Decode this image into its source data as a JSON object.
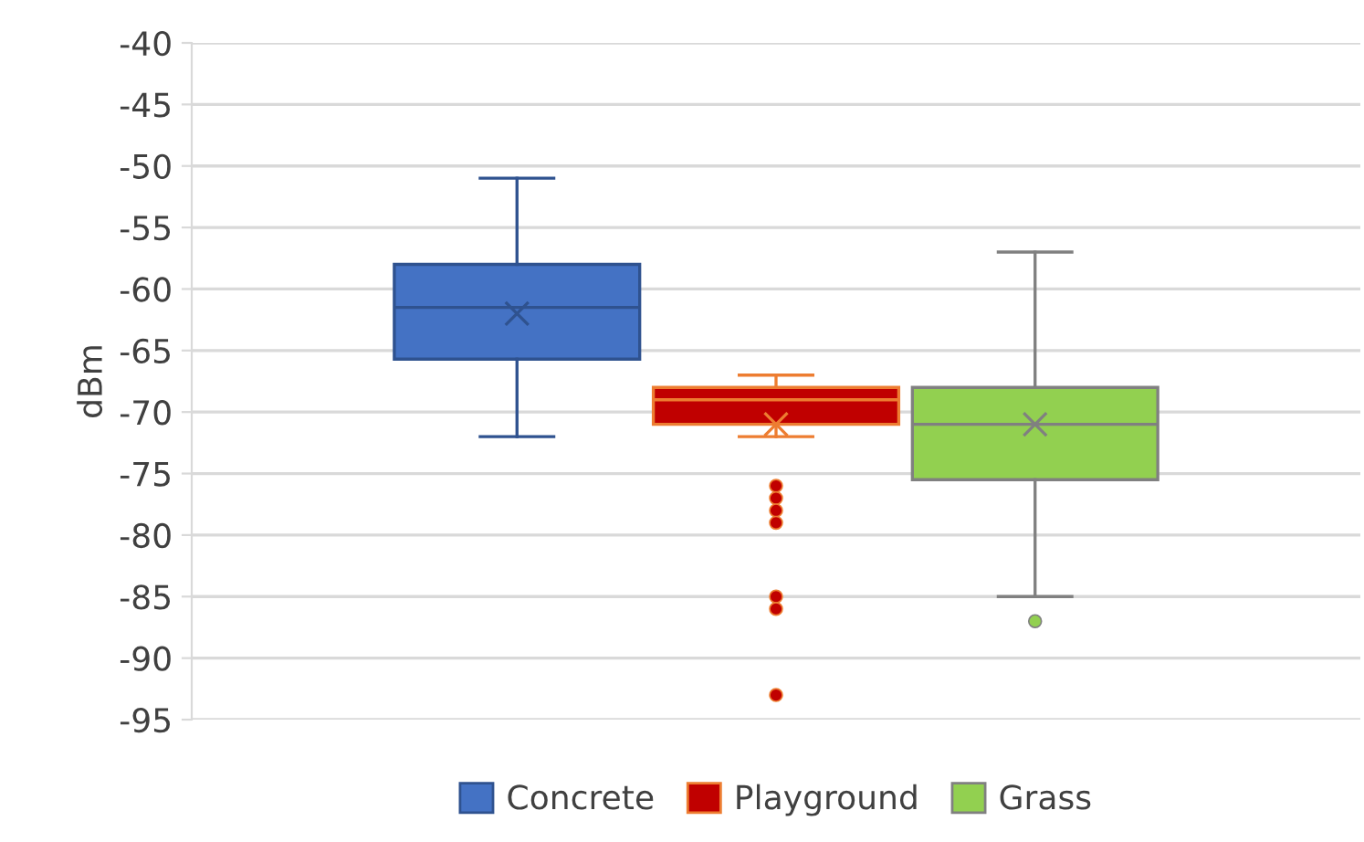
{
  "chart_data": {
    "type": "box",
    "ylabel": "dBm",
    "categories": [
      null
    ],
    "series": [
      {
        "name": "Concrete",
        "color": "#4472c4",
        "boxes": [
          {
            "low": -72,
            "q1": -65.7,
            "median": -61.5,
            "q3": -58,
            "high": -51,
            "mean": -62
          }
        ]
      },
      {
        "name": "Playground",
        "color": "#c00000",
        "boxes": [
          {
            "low": -72,
            "q1": -71,
            "median": -69,
            "q3": -68,
            "high": -67,
            "mean": -71,
            "outliers": [
              -76,
              -77,
              -78,
              -79,
              -85,
              -86,
              -93
            ]
          }
        ]
      },
      {
        "name": "Grass",
        "color": "#92d050",
        "boxes": [
          {
            "low": -85,
            "q1": -75.5,
            "median": -71,
            "q3": -68,
            "high": -57,
            "mean": -71,
            "outliers": [
              -87
            ]
          }
        ]
      }
    ],
    "ylim": [
      -95,
      -40
    ],
    "yticks": [
      -95,
      -90,
      -85,
      -80,
      -75,
      -70,
      -65,
      -60,
      -55,
      -50,
      -45,
      -40
    ],
    "grid": "y",
    "legend": "bottom"
  }
}
